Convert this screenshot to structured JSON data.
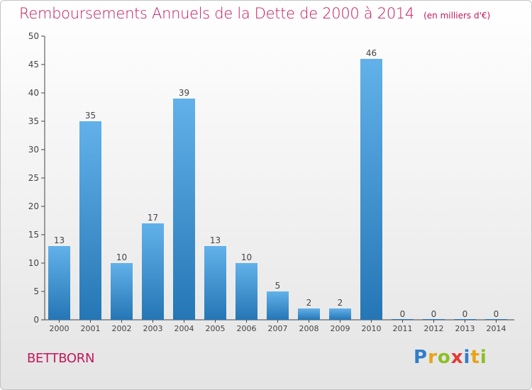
{
  "title": "Remboursements Annuels de la Dette de 2000 à 2014",
  "unit": "(en milliers d'€)",
  "commune": "BETTBORN",
  "logo": {
    "letters": [
      "P",
      "r",
      "o",
      "x",
      "i",
      "t",
      "i"
    ],
    "colors": [
      "#2f7fc9",
      "#e8a318",
      "#8cbf26",
      "#e53935",
      "#2f7fc9",
      "#e8a318",
      "#8cbf26"
    ]
  },
  "colors": {
    "bar_light": "#62b1ea",
    "bar_dark": "#2576b5",
    "title": "#c2185b",
    "axis": "#444444",
    "grid": "#e6e6e6"
  },
  "chart_data": {
    "type": "bar",
    "categories": [
      "2000",
      "2001",
      "2002",
      "2003",
      "2004",
      "2005",
      "2006",
      "2007",
      "2008",
      "2009",
      "2010",
      "2011",
      "2012",
      "2013",
      "2014"
    ],
    "values": [
      13,
      35,
      10,
      17,
      39,
      13,
      10,
      5,
      2,
      2,
      46,
      0,
      0,
      0,
      0
    ],
    "title": "Remboursements Annuels de la Dette de 2000 à 2014",
    "xlabel": "",
    "ylabel": "",
    "ylim": [
      0,
      50
    ],
    "yticks": [
      0,
      5,
      10,
      15,
      20,
      25,
      30,
      35,
      40,
      45,
      50
    ],
    "grid": false,
    "data_labels": true
  }
}
